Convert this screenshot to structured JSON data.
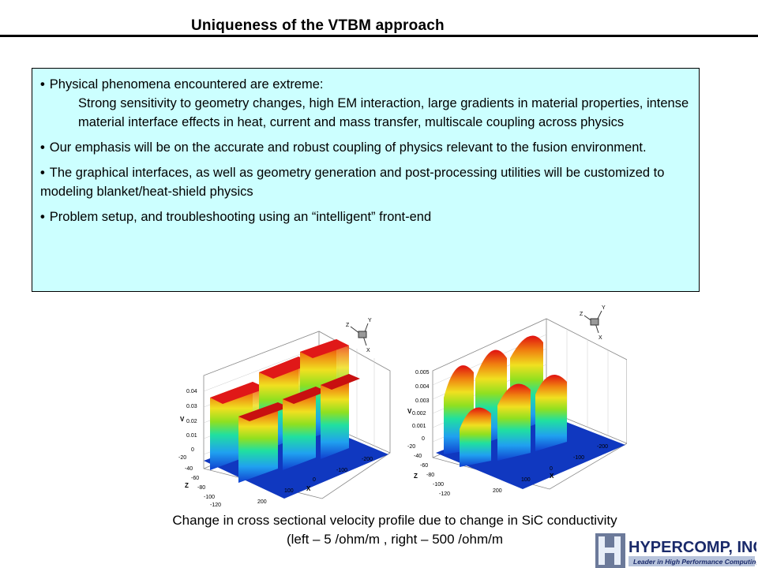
{
  "title": "Uniqueness of the VTBM approach",
  "bullets": [
    {
      "text": "Physical phenomena encountered are extreme:",
      "sub": "Strong sensitivity to geometry changes, high EM interaction, large gradients in material properties, intense material interface effects in heat, current and mass transfer, multiscale coupling across physics"
    },
    {
      "text": "Our emphasis will be on the accurate and robust coupling of physics relevant to the fusion environment."
    },
    {
      "text": "The graphical interfaces, as well as geometry generation and post-processing utilities will be customized to modeling blanket/heat-shield physics"
    },
    {
      "text": "Problem setup, and troubleshooting using an “intelligent” front-end"
    }
  ],
  "plots": {
    "left": {
      "v_axis_label": "V",
      "z_axis_label": "Z",
      "x_axis_label": "X",
      "v_ticks": [
        "0.04",
        "0.03",
        "0.02",
        "0.01",
        "0"
      ],
      "z_ticks": [
        "-20",
        "-40",
        "-60",
        "-80",
        "-100",
        "-120"
      ],
      "x_ticks": [
        "-200",
        "-100",
        "0",
        "100",
        "200"
      ],
      "triad": [
        "Z",
        "Y",
        "X"
      ]
    },
    "right": {
      "v_axis_label": "V",
      "z_axis_label": "Z",
      "x_axis_label": "X",
      "v_ticks": [
        "0.005",
        "0.004",
        "0.003",
        "0.002",
        "0.001",
        "0"
      ],
      "z_ticks": [
        "-20",
        "-40",
        "-60",
        "-80",
        "-100",
        "-120"
      ],
      "x_ticks": [
        "-200",
        "-100",
        "0",
        "100",
        "200"
      ],
      "triad": [
        "Z",
        "Y",
        "X"
      ]
    }
  },
  "caption": {
    "line1": "Change in cross sectional velocity profile due to change in SiC conductivity",
    "line2": "(left – 5 /ohm/m , right – 500 /ohm/m"
  },
  "logo": {
    "name": "HYPERCOMP, INC.",
    "tagline": "Leader in High Performance Computing"
  }
}
